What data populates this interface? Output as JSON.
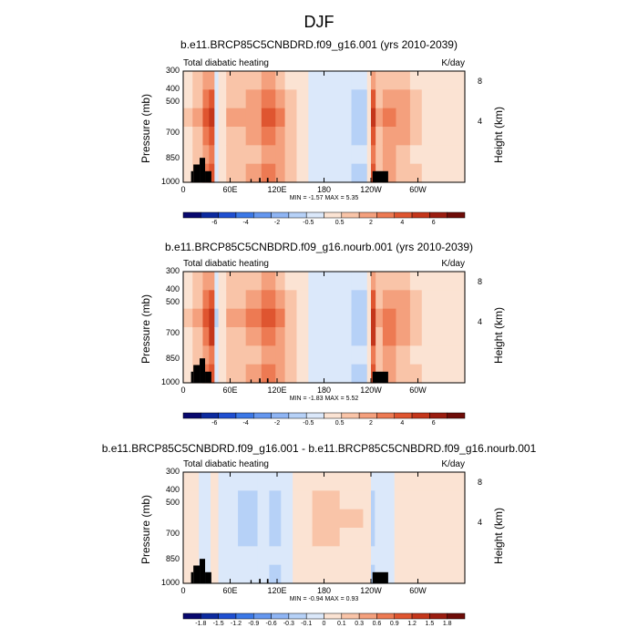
{
  "figure_title": "DJF",
  "chart_data": [
    {
      "type": "heatmap",
      "title": "b.e11.BRCP85C5CNBDRD.f09_g16.001 (yrs 2010-2039)",
      "left_label": "Total diabatic heating",
      "units": "K/day",
      "ylabel": "Pressure (mb)",
      "ylabel_right": "Height (km)",
      "yticks": [
        "300",
        "400",
        "500",
        "700",
        "850",
        "1000"
      ],
      "height_ticks": [
        "8",
        "4"
      ],
      "xticks": [
        "0",
        "60E",
        "120E",
        "180",
        "120W",
        "60W"
      ],
      "stats": "MIN = -1.57  MAX = 5.35",
      "colorbar_labels": [
        "-6",
        "-4",
        "-2",
        "-0.5",
        "0.5",
        "2",
        "4",
        "6"
      ],
      "colorbar_colors": [
        "#08086e",
        "#0c2a9f",
        "#1f4fd1",
        "#3b78e7",
        "#6597ef",
        "#8fb5f4",
        "#b6d1f7",
        "#dbe8fa",
        "#fbe3d3",
        "#f9c4a8",
        "#f4a07d",
        "#ed7a53",
        "#df5530",
        "#c4361b",
        "#9b1d10",
        "#6e0c08"
      ],
      "colorbar_min": -7,
      "colorbar_max": 7,
      "bands_lon": [
        {
          "lon": [
            0,
            12
          ],
          "v": 1.0
        },
        {
          "lon": [
            12,
            25
          ],
          "v": 1.8
        },
        {
          "lon": [
            25,
            33
          ],
          "v": 3.5
        },
        {
          "lon": [
            33,
            40
          ],
          "v": 5.0
        },
        {
          "lon": [
            40,
            45
          ],
          "v": -0.8
        },
        {
          "lon": [
            45,
            55
          ],
          "v": 0.7
        },
        {
          "lon": [
            55,
            80
          ],
          "v": 2.0
        },
        {
          "lon": [
            80,
            100
          ],
          "v": 2.6
        },
        {
          "lon": [
            100,
            118
          ],
          "v": 3.8
        },
        {
          "lon": [
            118,
            130
          ],
          "v": 3.0
        },
        {
          "lon": [
            130,
            145
          ],
          "v": 1.5
        },
        {
          "lon": [
            145,
            160
          ],
          "v": 0.6
        },
        {
          "lon": [
            160,
            215
          ],
          "v": -0.6
        },
        {
          "lon": [
            215,
            235
          ],
          "v": -1.2
        },
        {
          "lon": [
            235,
            240
          ],
          "v": 0.2
        },
        {
          "lon": [
            240,
            246
          ],
          "v": 5.0
        },
        {
          "lon": [
            246,
            255
          ],
          "v": 2.0
        },
        {
          "lon": [
            255,
            272
          ],
          "v": 3.0
        },
        {
          "lon": [
            272,
            290
          ],
          "v": 2.2
        },
        {
          "lon": [
            290,
            305
          ],
          "v": 1.4
        },
        {
          "lon": [
            305,
            360
          ],
          "v": 0.8
        }
      ]
    },
    {
      "type": "heatmap",
      "title": "b.e11.BRCP85C5CNBDRD.f09_g16.nourb.001 (yrs 2010-2039)",
      "left_label": "Total diabatic heating",
      "units": "K/day",
      "ylabel": "Pressure (mb)",
      "ylabel_right": "Height (km)",
      "yticks": [
        "300",
        "400",
        "500",
        "700",
        "850",
        "1000"
      ],
      "height_ticks": [
        "8",
        "4"
      ],
      "xticks": [
        "0",
        "60E",
        "120E",
        "180",
        "120W",
        "60W"
      ],
      "stats": "MIN = -1.83  MAX = 5.52",
      "colorbar_labels": [
        "-6",
        "-4",
        "-2",
        "-0.5",
        "0.5",
        "2",
        "4",
        "6"
      ],
      "colorbar_colors": [
        "#08086e",
        "#0c2a9f",
        "#1f4fd1",
        "#3b78e7",
        "#6597ef",
        "#8fb5f4",
        "#b6d1f7",
        "#dbe8fa",
        "#fbe3d3",
        "#f9c4a8",
        "#f4a07d",
        "#ed7a53",
        "#df5530",
        "#c4361b",
        "#9b1d10",
        "#6e0c08"
      ],
      "colorbar_min": -7,
      "colorbar_max": 7,
      "bands_lon": [
        {
          "lon": [
            0,
            12
          ],
          "v": 1.0
        },
        {
          "lon": [
            12,
            25
          ],
          "v": 1.8
        },
        {
          "lon": [
            25,
            33
          ],
          "v": 3.5
        },
        {
          "lon": [
            33,
            40
          ],
          "v": 5.2
        },
        {
          "lon": [
            40,
            45
          ],
          "v": -0.9
        },
        {
          "lon": [
            45,
            55
          ],
          "v": 0.7
        },
        {
          "lon": [
            55,
            80
          ],
          "v": 2.0
        },
        {
          "lon": [
            80,
            100
          ],
          "v": 2.7
        },
        {
          "lon": [
            100,
            118
          ],
          "v": 3.9
        },
        {
          "lon": [
            118,
            130
          ],
          "v": 3.0
        },
        {
          "lon": [
            130,
            145
          ],
          "v": 1.5
        },
        {
          "lon": [
            145,
            160
          ],
          "v": 0.6
        },
        {
          "lon": [
            160,
            215
          ],
          "v": -0.8
        },
        {
          "lon": [
            215,
            235
          ],
          "v": -1.4
        },
        {
          "lon": [
            235,
            240
          ],
          "v": 0.2
        },
        {
          "lon": [
            240,
            246
          ],
          "v": 5.2
        },
        {
          "lon": [
            246,
            255
          ],
          "v": 2.0
        },
        {
          "lon": [
            255,
            272
          ],
          "v": 3.1
        },
        {
          "lon": [
            272,
            290
          ],
          "v": 2.2
        },
        {
          "lon": [
            290,
            305
          ],
          "v": 1.4
        },
        {
          "lon": [
            305,
            360
          ],
          "v": 0.8
        }
      ]
    },
    {
      "type": "heatmap",
      "title": "b.e11.BRCP85C5CNBDRD.f09_g16.001 - b.e11.BRCP85C5CNBDRD.f09_g16.nourb.001",
      "left_label": "Total diabatic heating",
      "units": "K/day",
      "ylabel": "Pressure (mb)",
      "ylabel_right": "Height (km)",
      "yticks": [
        "300",
        "400",
        "500",
        "700",
        "850",
        "1000"
      ],
      "height_ticks": [
        "8",
        "4"
      ],
      "xticks": [
        "0",
        "60E",
        "120E",
        "180",
        "120W",
        "60W"
      ],
      "stats": "MIN = -0.94  MAX = 0.93",
      "colorbar_labels": [
        "-1.8",
        "-1.5",
        "-1.2",
        "-0.9",
        "-0.6",
        "-0.3",
        "-0.1",
        "0",
        "0.1",
        "0.3",
        "0.6",
        "0.9",
        "1.2",
        "1.5",
        "1.8"
      ],
      "colorbar_colors": [
        "#08086e",
        "#0c2a9f",
        "#1f4fd1",
        "#3b78e7",
        "#6597ef",
        "#8fb5f4",
        "#b6d1f7",
        "#dbe8fa",
        "#fbe3d3",
        "#f9c4a8",
        "#f4a07d",
        "#ed7a53",
        "#df5530",
        "#c4361b",
        "#9b1d10",
        "#6e0c08"
      ],
      "colorbar_min": -2.1,
      "colorbar_max": 2.1,
      "bands_lon": [
        {
          "lon": [
            0,
            20
          ],
          "v": 0.05
        },
        {
          "lon": [
            20,
            35
          ],
          "v": -0.15
        },
        {
          "lon": [
            35,
            45
          ],
          "v": 0.1
        },
        {
          "lon": [
            45,
            70
          ],
          "v": -0.2
        },
        {
          "lon": [
            70,
            95
          ],
          "v": -0.35
        },
        {
          "lon": [
            95,
            110
          ],
          "v": -0.15
        },
        {
          "lon": [
            110,
            125
          ],
          "v": -0.4
        },
        {
          "lon": [
            125,
            140
          ],
          "v": -0.2
        },
        {
          "lon": [
            140,
            165
          ],
          "v": 0.2
        },
        {
          "lon": [
            165,
            200
          ],
          "v": 0.35
        },
        {
          "lon": [
            200,
            230
          ],
          "v": 0.3
        },
        {
          "lon": [
            230,
            240
          ],
          "v": 0.05
        },
        {
          "lon": [
            240,
            245
          ],
          "v": -0.4
        },
        {
          "lon": [
            245,
            270
          ],
          "v": -0.1
        },
        {
          "lon": [
            270,
            290
          ],
          "v": 0.05
        },
        {
          "lon": [
            290,
            320
          ],
          "v": 0.2
        },
        {
          "lon": [
            320,
            360
          ],
          "v": 0.15
        }
      ]
    }
  ]
}
